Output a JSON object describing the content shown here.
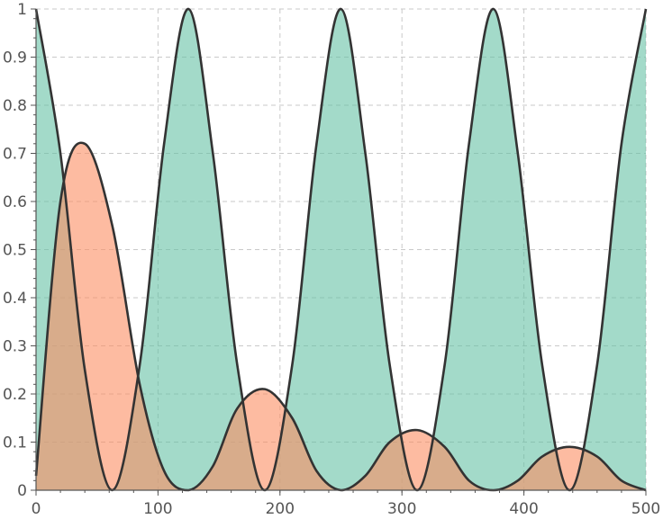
{
  "chart_data": {
    "type": "area",
    "title": "",
    "xlabel": "",
    "ylabel": "",
    "xlim": [
      0,
      500
    ],
    "ylim": [
      0,
      1
    ],
    "grid": true,
    "x_ticks": [
      "0",
      "100",
      "200",
      "300",
      "400",
      "500"
    ],
    "y_ticks": [
      "0",
      "0.1",
      "0.2",
      "0.3",
      "0.4",
      "0.5",
      "0.6",
      "0.7",
      "0.8",
      "0.9",
      "1"
    ],
    "x": [
      0,
      20,
      40,
      62.5,
      85,
      105,
      125,
      145,
      165,
      187.5,
      210,
      230,
      250,
      270,
      290,
      312.5,
      335,
      355,
      375,
      395,
      415,
      437.5,
      460,
      480,
      500
    ],
    "series": [
      {
        "values": [
          1.0,
          0.7,
          0.25,
          0.0,
          0.26,
          0.72,
          1.0,
          0.7,
          0.26,
          0.0,
          0.26,
          0.72,
          1.0,
          0.7,
          0.26,
          0.0,
          0.26,
          0.72,
          1.0,
          0.7,
          0.26,
          0.0,
          0.26,
          0.72,
          1.0
        ],
        "color": "#66c2a5"
      },
      {
        "values": [
          0.03,
          0.6,
          0.72,
          0.55,
          0.22,
          0.04,
          0.0,
          0.05,
          0.17,
          0.21,
          0.15,
          0.04,
          0.0,
          0.03,
          0.1,
          0.125,
          0.09,
          0.02,
          0.0,
          0.02,
          0.07,
          0.09,
          0.07,
          0.02,
          0.0
        ],
        "color": "#fc8d62"
      }
    ],
    "legend": "none"
  }
}
